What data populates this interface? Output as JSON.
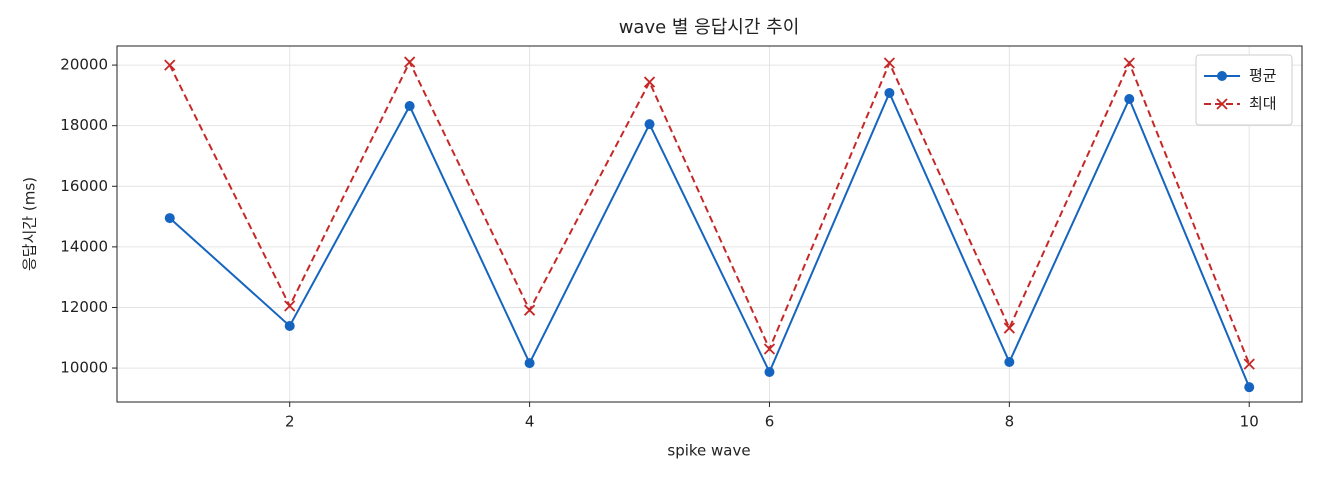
{
  "chart_data": {
    "type": "line",
    "title": "wave 별 응답시간 추이",
    "xlabel": "spike wave",
    "ylabel": "응답시간 (ms)",
    "x": [
      1,
      2,
      3,
      4,
      5,
      6,
      7,
      8,
      9,
      10
    ],
    "series": [
      {
        "name": "평균",
        "color": "#1565c0",
        "marker": "o",
        "linestyle": "solid",
        "values": [
          14950,
          11390,
          18650,
          10165,
          18050,
          9870,
          19080,
          10200,
          18880,
          9370
        ]
      },
      {
        "name": "최대",
        "color": "#c62828",
        "marker": "x",
        "linestyle": "dashed",
        "values": [
          20000,
          12050,
          20100,
          11910,
          19440,
          10630,
          20070,
          11320,
          20070,
          10130
        ]
      }
    ],
    "xlim": [
      0.56,
      10.44
    ],
    "xticks": [
      2,
      4,
      6,
      8,
      10
    ],
    "ylim": [
      8880,
      20630
    ],
    "yticks": [
      10000,
      12000,
      14000,
      16000,
      18000,
      20000
    ],
    "grid": true,
    "legend": "upper right"
  }
}
